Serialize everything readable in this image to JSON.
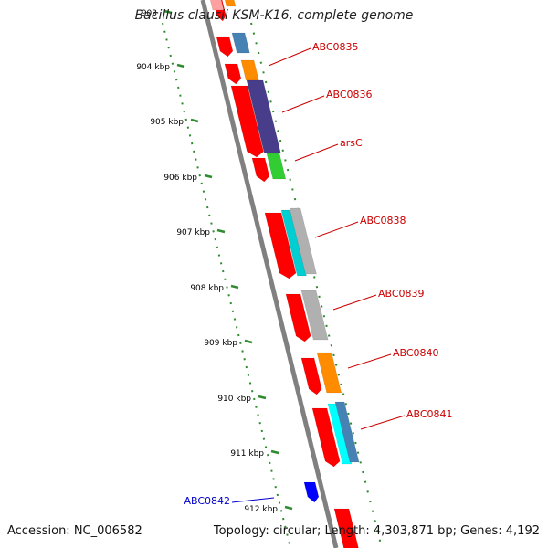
{
  "title": "Bacillus clausii KSM-K16, complete genome",
  "accession": "Accession: NC_006582",
  "topology": "Topology: circular; Length: 4,303,871 bp; Genes: 4,192",
  "colors": {
    "backbone": "#808080",
    "tick": "#2e8b2e",
    "label_red": "#cc0000",
    "label_blue": "#0000cc"
  },
  "ticks": [
    "903",
    "904 kbp",
    "905 kbp",
    "906 kbp",
    "907 kbp",
    "908 kbp",
    "909 kbp",
    "910 kbp",
    "911 kbp",
    "912 kbp"
  ],
  "gene_labels": [
    {
      "text": "ABC0835",
      "color": "red"
    },
    {
      "text": "ABC0836",
      "color": "red"
    },
    {
      "text": "arsC",
      "color": "red"
    },
    {
      "text": "ABC0838",
      "color": "red"
    },
    {
      "text": "ABC0839",
      "color": "red"
    },
    {
      "text": "ABC0840",
      "color": "red"
    },
    {
      "text": "ABC0841",
      "color": "red"
    },
    {
      "text": "ABC0842",
      "color": "blue"
    }
  ],
  "features": [
    {
      "track": "red",
      "color": "#ff0000"
    },
    {
      "track": "cat",
      "color": "#ffa0a0"
    },
    {
      "track": "cat",
      "color": "#ff8c00"
    },
    {
      "track": "red",
      "color": "#ff0000"
    },
    {
      "track": "cat",
      "color": "#4682b4"
    },
    {
      "track": "red",
      "color": "#ff0000"
    },
    {
      "track": "cat",
      "color": "#ff8c00"
    },
    {
      "track": "red",
      "color": "#ff0000"
    },
    {
      "track": "cat",
      "color": "#483d8b"
    },
    {
      "track": "red",
      "color": "#ff0000"
    },
    {
      "track": "cat",
      "color": "#32cd32"
    },
    {
      "track": "red",
      "color": "#ff0000"
    },
    {
      "track": "cat",
      "color": "#00ced1"
    },
    {
      "track": "cat",
      "color": "#b0b0b0"
    },
    {
      "track": "red",
      "color": "#ff0000"
    },
    {
      "track": "cat",
      "color": "#b0b0b0"
    },
    {
      "track": "red",
      "color": "#ff0000"
    },
    {
      "track": "cat",
      "color": "#ff8c00"
    },
    {
      "track": "red",
      "color": "#ff0000"
    },
    {
      "track": "cat",
      "color": "#00ffff"
    },
    {
      "track": "cat",
      "color": "#4682b4"
    },
    {
      "track": "blue",
      "color": "#0000ff"
    },
    {
      "track": "red",
      "color": "#ff0000"
    }
  ]
}
